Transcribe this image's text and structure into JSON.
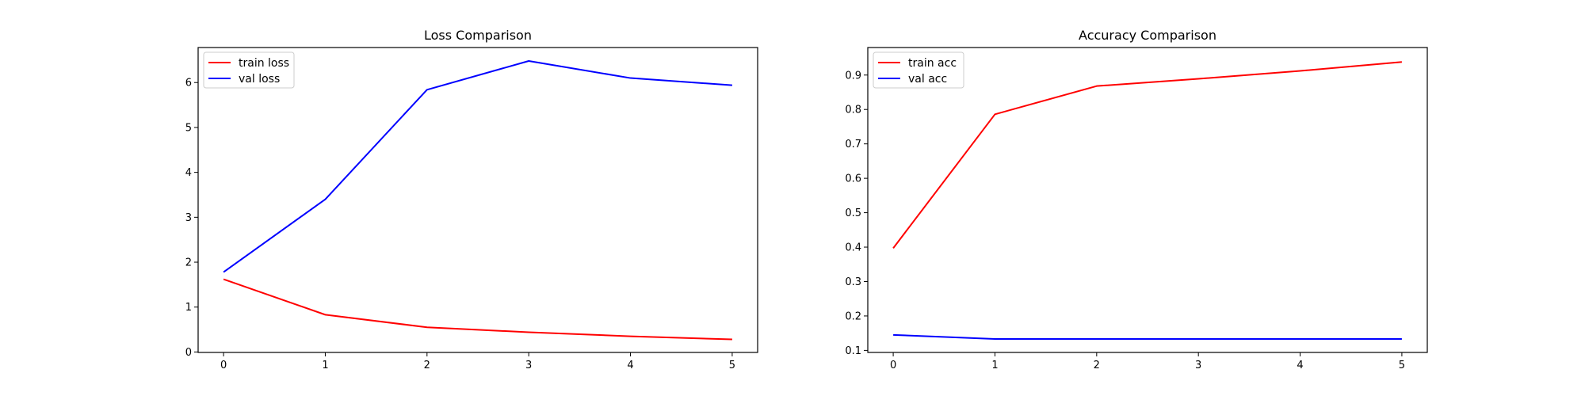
{
  "chart_data": [
    {
      "type": "line",
      "title": "Loss Comparison",
      "xlabel": "",
      "ylabel": "",
      "x": [
        0,
        1,
        2,
        3,
        4,
        5
      ],
      "xlim": [
        -0.25,
        5.25
      ],
      "ylim": [
        -0.01,
        6.78
      ],
      "xticks": [
        0,
        1,
        2,
        3,
        4,
        5
      ],
      "yticks": [
        0,
        1,
        2,
        3,
        4,
        5,
        6
      ],
      "grid": false,
      "legend_position": "upper left",
      "series": [
        {
          "name": "train loss",
          "color": "#ff0000",
          "values": [
            1.62,
            0.83,
            0.55,
            0.44,
            0.35,
            0.28
          ]
        },
        {
          "name": "val loss",
          "color": "#0000ff",
          "values": [
            1.78,
            3.4,
            5.84,
            6.48,
            6.1,
            5.94
          ]
        }
      ]
    },
    {
      "type": "line",
      "title": "Accuracy Comparison",
      "xlabel": "",
      "ylabel": "",
      "x": [
        0,
        1,
        2,
        3,
        4,
        5
      ],
      "xlim": [
        -0.25,
        5.25
      ],
      "ylim": [
        0.094,
        0.98
      ],
      "xticks": [
        0,
        1,
        2,
        3,
        4,
        5
      ],
      "yticks": [
        0.1,
        0.2,
        0.3,
        0.4,
        0.5,
        0.6,
        0.7,
        0.8,
        0.9
      ],
      "grid": false,
      "legend_position": "upper left",
      "series": [
        {
          "name": "train acc",
          "color": "#ff0000",
          "values": [
            0.397,
            0.786,
            0.868,
            0.889,
            0.912,
            0.938
          ]
        },
        {
          "name": "val acc",
          "color": "#0000ff",
          "values": [
            0.145,
            0.133,
            0.133,
            0.133,
            0.133,
            0.133
          ]
        }
      ]
    }
  ]
}
